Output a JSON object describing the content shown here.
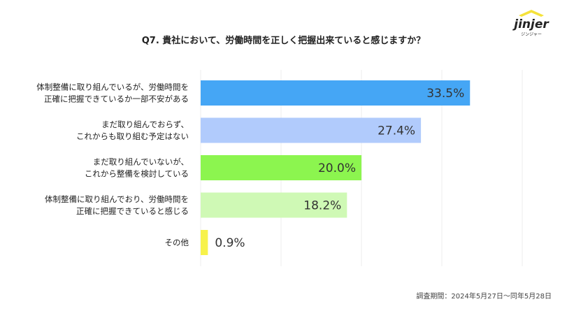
{
  "title": "Q7. 貴社において、労働時間を正しく把握出来ていると感じますか？",
  "footer": "調査期間：2024年5月27日〜同年5月28日",
  "logo": {
    "text": "jinjer",
    "subtext": "ジンジャー"
  },
  "chart_data": {
    "type": "bar",
    "orientation": "horizontal",
    "title": "Q7. 貴社において、労働時間を正しく把握出来ていると感じますか？",
    "categories": [
      [
        "体制整備に取り組んでいるが、労働時間を",
        "正確に把握できているか一部不安がある"
      ],
      [
        "まだ取り組んでおらず、",
        "これからも取り組む予定はない"
      ],
      [
        "まだ取り組んでいないが、",
        "これから整備を検討している"
      ],
      [
        "体制整備に取り組んでおり、労働時間を",
        "正確に把握できていると感じる"
      ],
      [
        "その他"
      ]
    ],
    "values": [
      33.5,
      27.4,
      20.0,
      18.2,
      0.9
    ],
    "value_labels": [
      "33.5%",
      "27.4%",
      "20.0%",
      "18.2%",
      "0.9%"
    ],
    "colors": [
      "#45a6f5",
      "#b1cbfc",
      "#8cf54f",
      "#cff9b5",
      "#f7f24a"
    ],
    "xlim": [
      0,
      40
    ],
    "grid": true,
    "xlabel": "",
    "ylabel": ""
  }
}
